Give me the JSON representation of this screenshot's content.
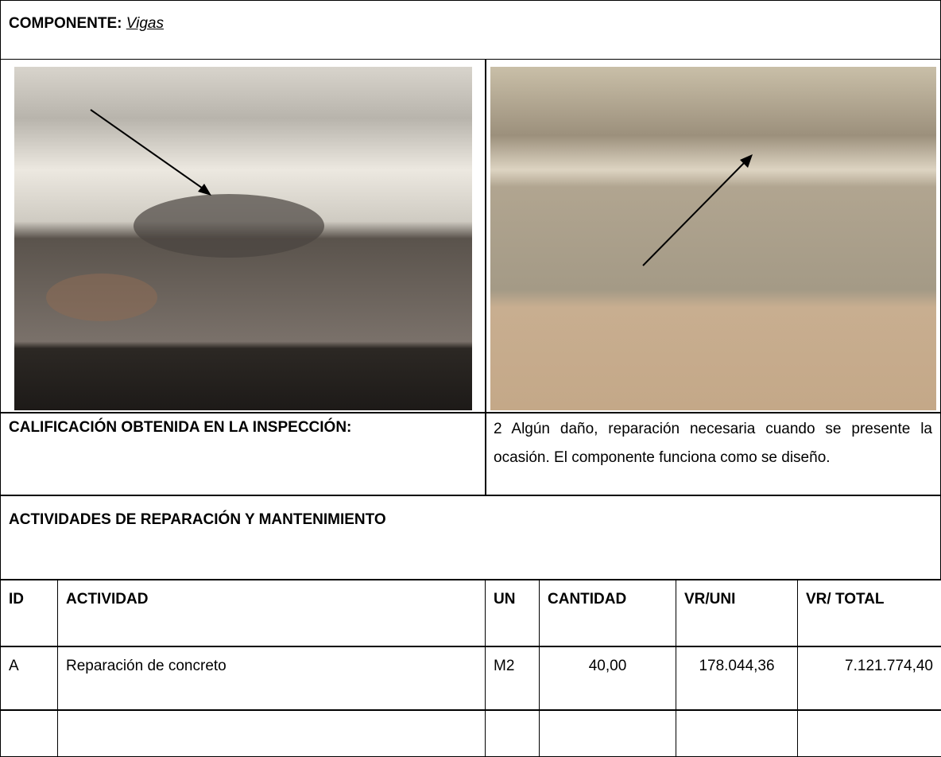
{
  "header": {
    "label": "COMPONENTE:",
    "value": "Vigas"
  },
  "rating": {
    "label": "CALIFICACIÓN OBTENIDA EN LA INSPECCIÓN:",
    "text": "2 Algún daño, reparación necesaria cuando se presente la ocasión. El componente funciona como se diseño."
  },
  "activities": {
    "title": "ACTIVIDADES DE REPARACIÓN Y MANTENIMIENTO",
    "columns": [
      "ID",
      "ACTIVIDAD",
      "UN",
      "CANTIDAD",
      "VR/UNI",
      "VR/ TOTAL"
    ],
    "rows": [
      [
        "A",
        "Reparación de concreto",
        "M2",
        "40,00",
        "178.044,36",
        "7.121.774,40"
      ]
    ]
  }
}
